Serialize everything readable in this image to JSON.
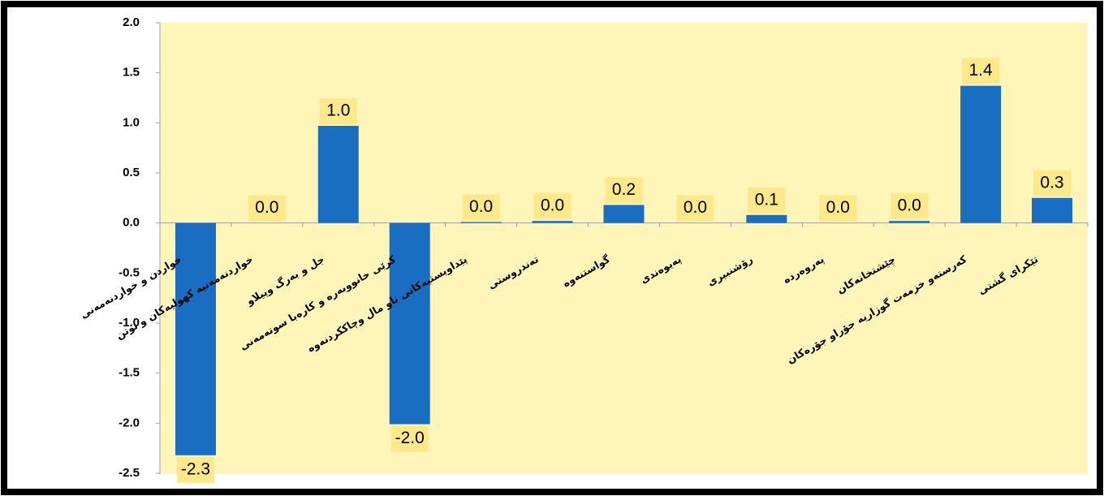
{
  "chart_data": {
    "type": "bar",
    "categories": [
      "خواردن و خواردنەمەنی",
      "خواردنەمەنیە کهولیەکان و توتن",
      "جل و بەرگ وپیلاو",
      "کرێی خانووبەرە و کارەبا سوتەمەنی",
      "پێداویستیەکانی ناو مال وچاککردنەوە",
      "تەندروستی",
      "گواستنەوە",
      "پەیوەندی",
      "رۆشنبیری",
      "پەروەردە",
      "چێشتخانەکان",
      "کەرستەو خزمەت گوزاریە جۆراو جۆرەکان",
      "تێکرای گشتی"
    ],
    "values": [
      -2.32,
      0.0,
      0.97,
      -2.01,
      0.01,
      0.02,
      0.18,
      0.0,
      0.08,
      0.0,
      0.02,
      1.37,
      0.25
    ],
    "value_labels": [
      "-2.3",
      "0.0",
      "1.0",
      "-2.0",
      "0.0",
      "0.0",
      "0.2",
      "0.0",
      "0.1",
      "0.0",
      "0.0",
      "1.4",
      "0.3"
    ],
    "color": "#1a6ec2",
    "ylim": [
      -2.5,
      2.0
    ],
    "yticks": [
      {
        "value": -2.5,
        "label": "-2.5"
      },
      {
        "value": -2,
        "label": "-2.0"
      },
      -1.5,
      {
        "value": -1,
        "label": "-1.0"
      },
      -0.5,
      {
        "value": 0,
        "label": "0.0"
      },
      0.5,
      {
        "value": 1,
        "label": "1.0"
      },
      1.5,
      {
        "value": 2,
        "label": "2.0"
      }
    ]
  }
}
